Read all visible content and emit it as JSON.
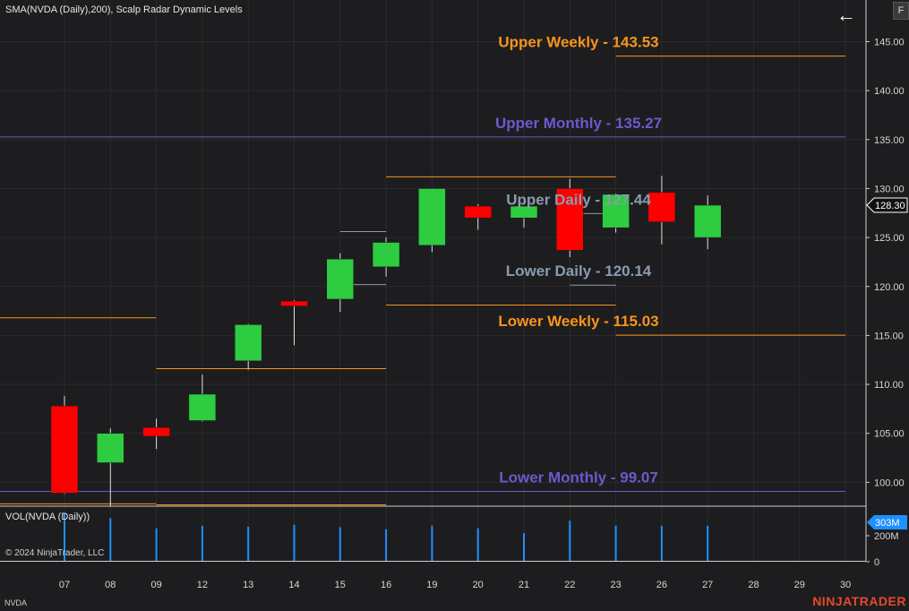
{
  "header": {
    "indicator_title": "SMA(NVDA (Daily),200), Scalp Radar Dynamic Levels",
    "f_button_label": "F",
    "back_icon": "arrow-left-icon"
  },
  "volume_panel": {
    "title": "VOL(NVDA (Daily))",
    "y_ticks": [
      "200M",
      "0"
    ],
    "last_value_label": "303M"
  },
  "footer": {
    "copyright": "© 2024 NinjaTrader, LLC",
    "symbol": "NVDA",
    "brand": "NINJATRADER"
  },
  "colors": {
    "background": "#1d1d1f",
    "up_candle": "#2ecc40",
    "down_candle": "#ff0000",
    "weekly_level": "#f7941d",
    "monthly_level": "#6a5acd",
    "daily_level": "#8a9bb0",
    "volume_bar": "#1e90ff",
    "price_marker": "#ffffff",
    "volume_marker": "#1e90ff"
  },
  "chart_data": {
    "type": "candlestick",
    "x_categories": [
      "07",
      "08",
      "09",
      "12",
      "13",
      "14",
      "15",
      "16",
      "19",
      "20",
      "21",
      "22",
      "23",
      "26",
      "27",
      "28",
      "29",
      "30"
    ],
    "ylim": [
      97.5,
      147.5
    ],
    "y_ticks": [
      100,
      105,
      110,
      115,
      120,
      125,
      130,
      135,
      140,
      145
    ],
    "y_tick_labels": [
      "100.00",
      "105.00",
      "110.00",
      "115.00",
      "120.00",
      "125.00",
      "130.00",
      "135.00",
      "140.00",
      "145.00"
    ],
    "last_price_label": "128.30",
    "candles": [
      {
        "x": "07",
        "open": 107.8,
        "high": 108.8,
        "low": 98.8,
        "close": 98.9
      },
      {
        "x": "08",
        "open": 102.0,
        "high": 105.5,
        "low": 97.5,
        "close": 105.0
      },
      {
        "x": "09",
        "open": 105.6,
        "high": 106.5,
        "low": 103.4,
        "close": 104.7
      },
      {
        "x": "12",
        "open": 106.3,
        "high": 111.0,
        "low": 106.2,
        "close": 109.0
      },
      {
        "x": "13",
        "open": 112.4,
        "high": 116.2,
        "low": 111.5,
        "close": 116.1
      },
      {
        "x": "14",
        "open": 118.5,
        "high": 118.6,
        "low": 114.0,
        "close": 118.0
      },
      {
        "x": "15",
        "open": 118.7,
        "high": 123.4,
        "low": 117.4,
        "close": 122.8
      },
      {
        "x": "16",
        "open": 122.0,
        "high": 125.0,
        "low": 121.0,
        "close": 124.5
      },
      {
        "x": "19",
        "open": 124.2,
        "high": 130.0,
        "low": 123.5,
        "close": 130.0
      },
      {
        "x": "20",
        "open": 128.2,
        "high": 128.4,
        "low": 125.8,
        "close": 127.0
      },
      {
        "x": "21",
        "open": 127.0,
        "high": 128.0,
        "low": 126.0,
        "close": 128.2
      },
      {
        "x": "22",
        "open": 130.0,
        "high": 131.0,
        "low": 123.0,
        "close": 123.7
      },
      {
        "x": "23",
        "open": 126.0,
        "high": 129.5,
        "low": 125.5,
        "close": 129.4
      },
      {
        "x": "26",
        "open": 129.6,
        "high": 131.3,
        "low": 124.3,
        "close": 126.6
      },
      {
        "x": "27",
        "open": 125.0,
        "high": 129.3,
        "low": 123.8,
        "close": 128.3
      }
    ],
    "volume_bars": [
      {
        "x": "07",
        "rel": 0.95
      },
      {
        "x": "08",
        "rel": 0.85
      },
      {
        "x": "09",
        "rel": 0.65
      },
      {
        "x": "12",
        "rel": 0.7
      },
      {
        "x": "13",
        "rel": 0.68
      },
      {
        "x": "14",
        "rel": 0.72
      },
      {
        "x": "15",
        "rel": 0.67
      },
      {
        "x": "16",
        "rel": 0.63
      },
      {
        "x": "19",
        "rel": 0.7
      },
      {
        "x": "20",
        "rel": 0.65
      },
      {
        "x": "21",
        "rel": 0.55
      },
      {
        "x": "22",
        "rel": 0.8
      },
      {
        "x": "23",
        "rel": 0.7
      },
      {
        "x": "26",
        "rel": 0.7
      },
      {
        "x": "27",
        "rel": 0.7
      }
    ],
    "level_segments": [
      {
        "kind": "weekly",
        "value": 116.8,
        "from": "07",
        "to": "09"
      },
      {
        "kind": "weekly",
        "value": 97.8,
        "from": "07",
        "to": "09"
      },
      {
        "kind": "weekly",
        "value": 111.6,
        "from": "09",
        "to": "16"
      },
      {
        "kind": "weekly",
        "value": 97.7,
        "from": "09",
        "to": "16"
      },
      {
        "kind": "weekly",
        "value": 131.2,
        "from": "16",
        "to": "23"
      },
      {
        "kind": "weekly",
        "value": 118.1,
        "from": "16",
        "to": "23"
      },
      {
        "kind": "weekly",
        "value": 143.53,
        "from": "23",
        "to": "30"
      },
      {
        "kind": "weekly",
        "value": 115.03,
        "from": "23",
        "to": "30"
      },
      {
        "kind": "monthly",
        "value": 135.27,
        "from": "start",
        "to": "30"
      },
      {
        "kind": "monthly",
        "value": 99.07,
        "from": "start",
        "to": "30"
      },
      {
        "kind": "daily",
        "value": 125.6,
        "from": "15",
        "to": "16"
      },
      {
        "kind": "daily",
        "value": 120.2,
        "from": "15",
        "to": "16"
      },
      {
        "kind": "daily",
        "value": 127.44,
        "from": "22",
        "to": "23"
      },
      {
        "kind": "daily",
        "value": 120.14,
        "from": "22",
        "to": "23"
      }
    ],
    "level_labels": [
      {
        "kind": "weekly",
        "text": "Upper Weekly - 143.53",
        "value": 143.53
      },
      {
        "kind": "monthly",
        "text": "Upper Monthly - 135.27",
        "value": 135.27
      },
      {
        "kind": "daily",
        "text": "Upper Daily - 127.44",
        "value": 127.44
      },
      {
        "kind": "daily",
        "text": "Lower Daily - 120.14",
        "value": 120.14
      },
      {
        "kind": "weekly",
        "text": "Lower Weekly - 115.03",
        "value": 115.03
      },
      {
        "kind": "monthly",
        "text": "Lower Monthly - 99.07",
        "value": 99.07
      }
    ]
  }
}
